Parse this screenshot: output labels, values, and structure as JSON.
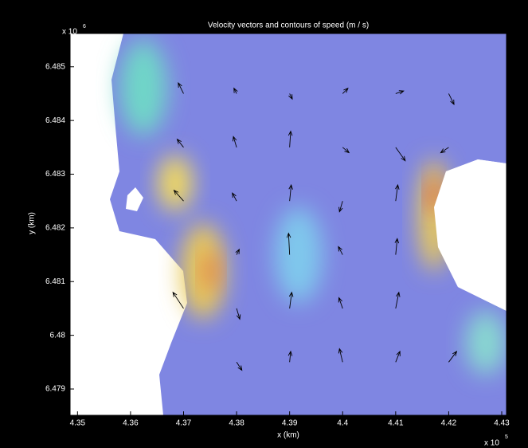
{
  "chart_data": {
    "type": "quiver",
    "title": "Velocity vectors and contours of speed (m / s)",
    "xlabel": "x (km)",
    "ylabel": "y (km)",
    "x_multiplier": {
      "base": "x 10",
      "power": "5"
    },
    "y_multiplier": {
      "base": "x 10",
      "power": "6"
    },
    "xlim": [
      4.3486,
      4.4309
    ],
    "ylim": [
      6.47851,
      6.48562
    ],
    "xticks": [
      4.35,
      4.36,
      4.37,
      4.38,
      4.39,
      4.4,
      4.41,
      4.42,
      4.43
    ],
    "yticks": [
      6.479,
      6.48,
      6.481,
      6.482,
      6.483,
      6.484,
      6.485
    ],
    "color": "#000000",
    "grid": false,
    "x": [
      4.37,
      4.38,
      4.39,
      4.4,
      4.41,
      4.42,
      4.37,
      4.38,
      4.39,
      4.4,
      4.41,
      4.42,
      4.37,
      4.38,
      4.39,
      4.4,
      4.41,
      4.38,
      4.39,
      4.4,
      4.41,
      4.37,
      4.38,
      4.39,
      4.4,
      4.41,
      4.38,
      4.39,
      4.4,
      4.41,
      4.42
    ],
    "y": [
      6.4845,
      6.4845,
      6.4845,
      6.4845,
      6.4845,
      6.4845,
      6.4835,
      6.4835,
      6.4835,
      6.4835,
      6.4835,
      6.4835,
      6.4825,
      6.4825,
      6.4825,
      6.4825,
      6.4825,
      6.4815,
      6.4815,
      6.4815,
      6.4815,
      6.4805,
      6.4805,
      6.4805,
      6.4805,
      6.4805,
      6.4795,
      6.4795,
      6.4795,
      6.4795,
      6.4795
    ],
    "u": [
      -0.001,
      -0.0005,
      0.0005,
      0.001,
      0.0015,
      0.001,
      -0.0012,
      -0.0006,
      0.0002,
      0.0012,
      0.0018,
      -0.0015,
      -0.0018,
      -0.0008,
      0.0003,
      -0.0006,
      0.0004,
      0.0005,
      -0.0002,
      -0.0008,
      0.0003,
      -0.002,
      0.0006,
      0.0004,
      -0.0007,
      0.0006,
      0.001,
      0.0002,
      -0.0006,
      0.0008,
      0.0015
    ],
    "v": [
      0.0002,
      0.0001,
      -0.0001,
      0.0001,
      5e-05,
      -0.0002,
      0.00015,
      0.0002,
      0.0003,
      -0.0001,
      -0.00025,
      -0.0001,
      0.0002,
      0.00015,
      0.0003,
      -0.0002,
      0.0003,
      0.0001,
      0.0004,
      0.00015,
      0.0003,
      0.0003,
      -0.0002,
      0.0003,
      0.0002,
      0.0003,
      -0.00015,
      0.0002,
      0.00025,
      0.0002,
      0.0002
    ]
  }
}
